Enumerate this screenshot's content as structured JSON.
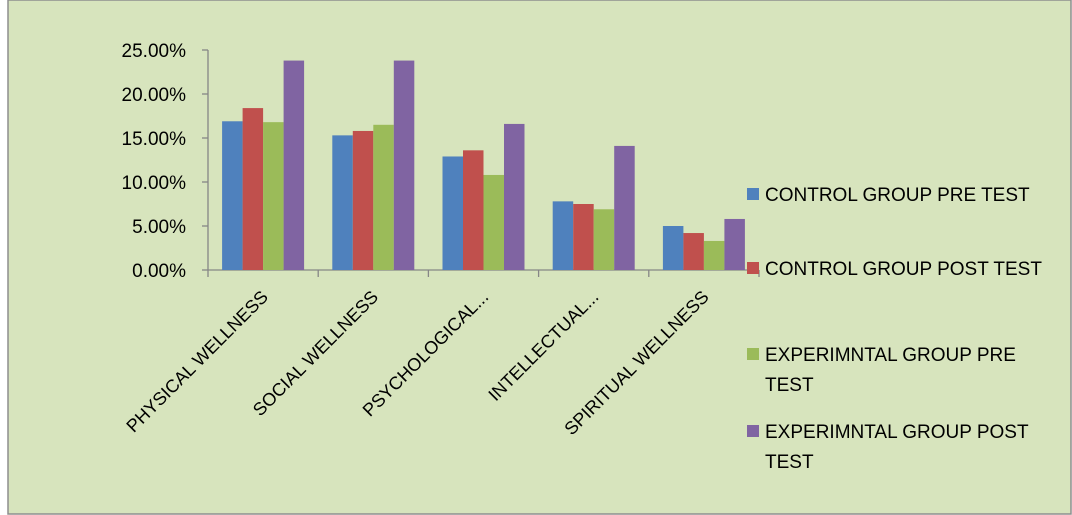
{
  "chart_data": {
    "type": "bar",
    "title": "",
    "xlabel": "",
    "ylabel": "",
    "categories": [
      "PHYSICAL WELLNESS",
      "SOCIAL WELLNESS",
      "PSYCHOLOGICAL...",
      "INTELLECTUAL...",
      "SPIRITUAL WELLNESS"
    ],
    "series": [
      {
        "name": "CONTROL GROUP PRE TEST",
        "color": "#4F81BD",
        "values": [
          0.169,
          0.153,
          0.129,
          0.078,
          0.05
        ]
      },
      {
        "name": "CONTROL GROUP POST TEST",
        "color": "#C0504D",
        "values": [
          0.184,
          0.158,
          0.136,
          0.075,
          0.042
        ]
      },
      {
        "name": "EXPERIMNTAL GROUP PRE TEST",
        "color": "#9BBB59",
        "values": [
          0.168,
          0.165,
          0.108,
          0.069,
          0.033
        ]
      },
      {
        "name": "EXPERIMNTAL GROUP POST TEST",
        "color": "#8064A2",
        "values": [
          0.238,
          0.238,
          0.166,
          0.141,
          0.058
        ]
      }
    ],
    "ylim": [
      0,
      0.25
    ],
    "yticks": [
      "0.00%",
      "5.00%",
      "10.00%",
      "15.00%",
      "20.00%",
      "25.00%"
    ],
    "grid": false,
    "legend_position": "right",
    "background_color": "#D7E4BD"
  }
}
